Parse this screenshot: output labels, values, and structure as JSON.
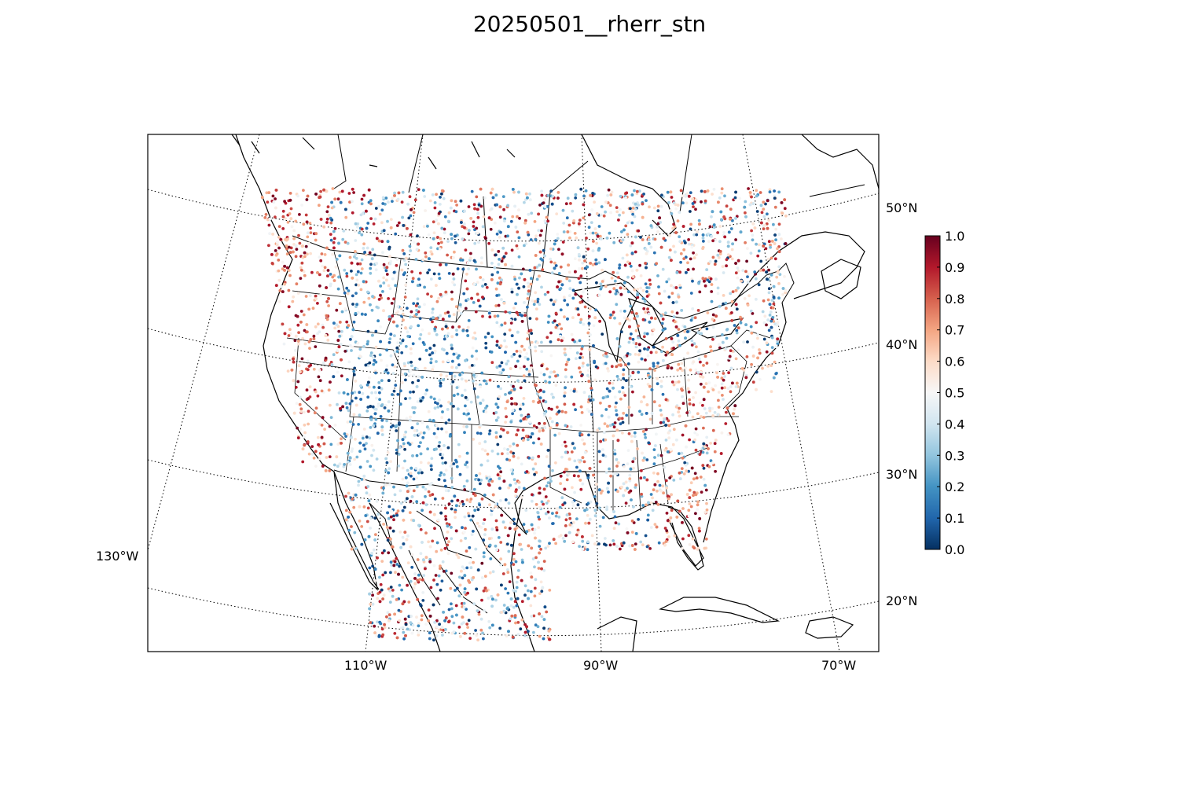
{
  "title": "20250501__rherr_stn",
  "graticule": {
    "lat_labels": [
      "50°N",
      "40°N",
      "30°N",
      "20°N"
    ],
    "lon_labels": [
      "130°W",
      "110°W",
      "90°W",
      "70°W"
    ]
  },
  "colorbar": {
    "ticks": [
      "0.0",
      "0.1",
      "0.2",
      "0.3",
      "0.4",
      "0.5",
      "0.6",
      "0.7",
      "0.8",
      "0.9",
      "1.0"
    ],
    "range": [
      0,
      1
    ],
    "colormap": "RdBu_r",
    "colors": [
      "#053061",
      "#2166ac",
      "#4393c3",
      "#92c5de",
      "#d1e5f0",
      "#f7f7f7",
      "#fddbc7",
      "#f4a582",
      "#d6604d",
      "#b2182b",
      "#67001f"
    ]
  },
  "stations": {
    "description_free": true,
    "value_range": [
      0,
      1
    ]
  }
}
